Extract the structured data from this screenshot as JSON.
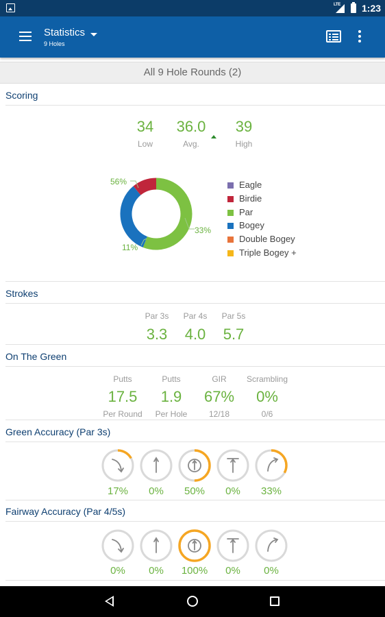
{
  "status_bar": {
    "time": "1:23",
    "network": "LTE"
  },
  "app_bar": {
    "title": "Statistics",
    "subtitle": "9 Holes"
  },
  "rounds_header": "All 9 Hole Rounds (2)",
  "scoring": {
    "title": "Scoring",
    "low": {
      "value": "34",
      "label": "Low"
    },
    "avg": {
      "value": "36.0",
      "label": "Avg."
    },
    "high": {
      "value": "39",
      "label": "High"
    },
    "distribution": [
      {
        "name": "Eagle",
        "color": "#7b6fae",
        "pct": 0
      },
      {
        "name": "Birdie",
        "color": "#c0263b",
        "pct": 11
      },
      {
        "name": "Par",
        "color": "#7dc142",
        "pct": 56
      },
      {
        "name": "Bogey",
        "color": "#1a72be",
        "pct": 33
      },
      {
        "name": "Double Bogey",
        "color": "#e8743b",
        "pct": 0
      },
      {
        "name": "Triple Bogey +",
        "color": "#f5b71a",
        "pct": 0
      }
    ],
    "donut_labels": {
      "par": "56%",
      "bogey": "33%",
      "birdie": "11%"
    }
  },
  "strokes": {
    "title": "Strokes",
    "items": [
      {
        "label": "Par 3s",
        "value": "3.3"
      },
      {
        "label": "Par 4s",
        "value": "4.0"
      },
      {
        "label": "Par 5s",
        "value": "5.7"
      }
    ]
  },
  "on_the_green": {
    "title": "On The Green",
    "items": [
      {
        "label": "Putts",
        "value": "17.5",
        "sub": "Per Round"
      },
      {
        "label": "Putts",
        "value": "1.9",
        "sub": "Per Hole"
      },
      {
        "label": "GIR",
        "value": "67%",
        "sub": "12/18"
      },
      {
        "label": "Scrambling",
        "value": "0%",
        "sub": "0/6"
      }
    ]
  },
  "green_accuracy": {
    "title": "Green Accuracy (Par 3s)",
    "items": [
      {
        "direction": "left",
        "pct": "17%",
        "fraction": 0.17
      },
      {
        "direction": "long",
        "pct": "0%",
        "fraction": 0
      },
      {
        "direction": "hit",
        "pct": "50%",
        "fraction": 0.5
      },
      {
        "direction": "short",
        "pct": "0%",
        "fraction": 0
      },
      {
        "direction": "right",
        "pct": "33%",
        "fraction": 0.33
      }
    ]
  },
  "fairway_accuracy": {
    "title": "Fairway Accuracy (Par 4/5s)",
    "items": [
      {
        "direction": "left",
        "pct": "0%",
        "fraction": 0
      },
      {
        "direction": "long",
        "pct": "0%",
        "fraction": 0
      },
      {
        "direction": "hit",
        "pct": "100%",
        "fraction": 1
      },
      {
        "direction": "short",
        "pct": "0%",
        "fraction": 0
      },
      {
        "direction": "right",
        "pct": "0%",
        "fraction": 0
      }
    ]
  },
  "colors": {
    "accent": "#0e5fa6",
    "status": "#0c3c68",
    "value_green": "#6ab23f",
    "ring_orange": "#f5a623",
    "section_title": "#0d3e70"
  }
}
